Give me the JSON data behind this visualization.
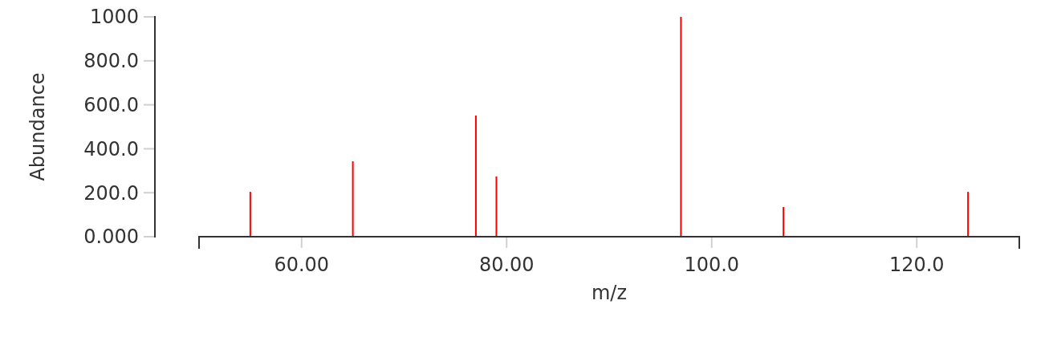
{
  "chart_data": {
    "type": "bar",
    "xlabel": "m/z",
    "ylabel": "Abundance",
    "x": [
      55,
      65,
      77,
      79,
      97,
      107,
      125
    ],
    "values": [
      204,
      343,
      551,
      274,
      1000,
      135,
      204
    ],
    "color": "#ff0000",
    "xlim": [
      50,
      130
    ],
    "xticks": [
      {
        "value": 60,
        "label": "60.00"
      },
      {
        "value": 80,
        "label": "80.00"
      },
      {
        "value": 100,
        "label": "100.0"
      },
      {
        "value": 120,
        "label": "120.0"
      }
    ],
    "ylim": [
      0,
      1000
    ],
    "yticks": [
      {
        "value": 0,
        "label": "0.000"
      },
      {
        "value": 200,
        "label": "200.0"
      },
      {
        "value": 400,
        "label": "400.0"
      },
      {
        "value": 600,
        "label": "600.0"
      },
      {
        "value": 800,
        "label": "800.0"
      },
      1000
    ],
    "tick_labels": true
  }
}
